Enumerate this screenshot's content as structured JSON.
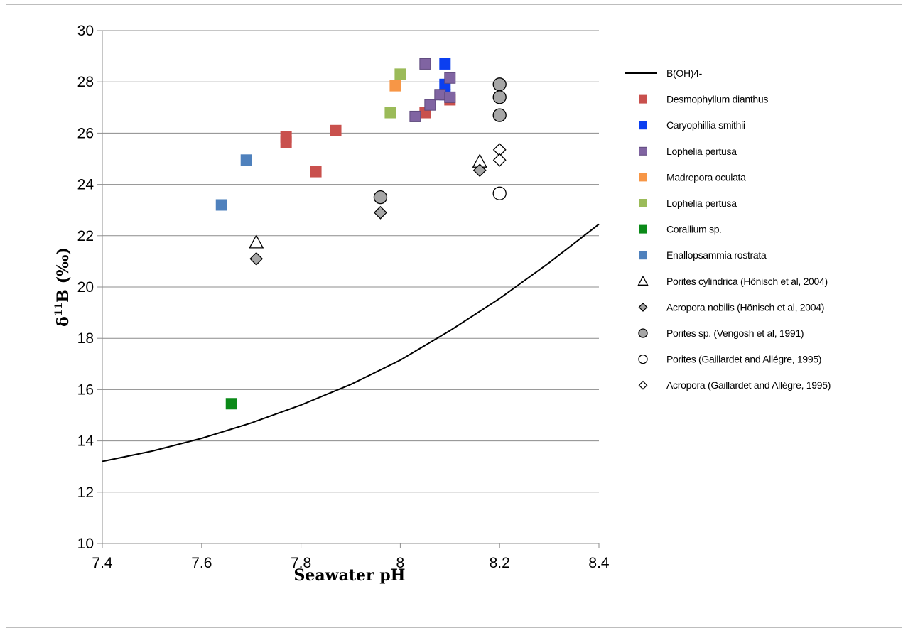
{
  "chart_data": {
    "type": "scatter",
    "xlabel": "Seawater pH",
    "ylabel_main": "δ",
    "ylabel_sup": "11",
    "ylabel_rest": "B (‰)",
    "xlim": [
      7.4,
      8.4
    ],
    "ylim": [
      10,
      30
    ],
    "x_ticks": [
      7.4,
      7.6,
      7.8,
      8,
      8.2,
      8.4
    ],
    "x_tick_labels": [
      "7.4",
      "7.6",
      "7.8",
      "8",
      "8.2",
      "8.4"
    ],
    "y_ticks": [
      10,
      12,
      14,
      16,
      18,
      20,
      22,
      24,
      26,
      28,
      30
    ],
    "y_tick_labels": [
      "10",
      "12",
      "14",
      "16",
      "18",
      "20",
      "22",
      "24",
      "26",
      "28",
      "30"
    ],
    "grid": "horizontal",
    "legend_position": "right",
    "series": [
      {
        "name": "B(OH)4-",
        "kind": "line",
        "color": "#000000",
        "x": [
          7.4,
          7.5,
          7.6,
          7.7,
          7.8,
          7.9,
          8.0,
          8.1,
          8.2,
          8.3,
          8.4
        ],
        "y": [
          13.2,
          13.6,
          14.1,
          14.7,
          15.4,
          16.2,
          17.15,
          18.3,
          19.55,
          20.95,
          22.45
        ]
      },
      {
        "name": "Desmophyllum dianthus",
        "marker": "square",
        "color": "#c9504d",
        "x": [
          7.77,
          7.77,
          7.83,
          7.87,
          8.05,
          8.1
        ],
        "y": [
          25.85,
          25.65,
          24.5,
          26.1,
          26.8,
          27.3
        ]
      },
      {
        "name": "Caryophillia smithii",
        "marker": "square",
        "color": "#0b3ff0",
        "x": [
          8.09,
          8.09,
          8.09
        ],
        "y": [
          28.7,
          27.9,
          27.5
        ]
      },
      {
        "name": "Lophelia pertusa",
        "marker": "square",
        "color": "#8064a2",
        "stroke": "#5f4a7e",
        "x": [
          8.05,
          8.03,
          8.06,
          8.08,
          8.1,
          8.1
        ],
        "y": [
          28.7,
          26.65,
          27.1,
          27.5,
          28.15,
          27.4
        ]
      },
      {
        "name": "Madrepora oculata",
        "marker": "square",
        "color": "#f79646",
        "x": [
          7.99
        ],
        "y": [
          27.85
        ]
      },
      {
        "name": "Lophelia pertusa",
        "marker": "square",
        "color": "#9bbb59",
        "x": [
          8.0,
          7.98
        ],
        "y": [
          28.3,
          26.8
        ]
      },
      {
        "name": "Corallium sp.",
        "marker": "square",
        "color": "#0b8a18",
        "x": [
          7.66
        ],
        "y": [
          15.45
        ]
      },
      {
        "name": "Enallopsammia rostrata",
        "marker": "square",
        "color": "#4f81bd",
        "x": [
          7.69,
          7.64
        ],
        "y": [
          24.95,
          23.2
        ]
      },
      {
        "name": "Porites cylindrica (Hönisch et al, 2004)",
        "marker": "triangle",
        "color": "#ffffff",
        "x": [
          7.71,
          8.16
        ],
        "y": [
          21.75,
          24.9
        ]
      },
      {
        "name": "Acropora nobilis (Hönisch et al, 2004)",
        "marker": "diamond",
        "color": "#a6a6a6",
        "x": [
          7.71,
          7.96,
          8.16
        ],
        "y": [
          21.1,
          22.9,
          24.55
        ]
      },
      {
        "name": "Porites sp. (Vengosh et al, 1991)",
        "marker": "circle",
        "color": "#a6a6a6",
        "x": [
          7.96,
          8.2,
          8.2,
          8.2
        ],
        "y": [
          23.5,
          27.9,
          27.4,
          26.7
        ]
      },
      {
        "name": "Porites (Gaillardet and Allégre, 1995)",
        "marker": "circle",
        "color": "#ffffff",
        "x": [
          8.2
        ],
        "y": [
          23.65
        ]
      },
      {
        "name": "Acropora (Gaillardet and Allégre, 1995)",
        "marker": "diamond",
        "color": "#ffffff",
        "x": [
          8.2,
          8.2
        ],
        "y": [
          25.35,
          24.95
        ]
      }
    ]
  }
}
